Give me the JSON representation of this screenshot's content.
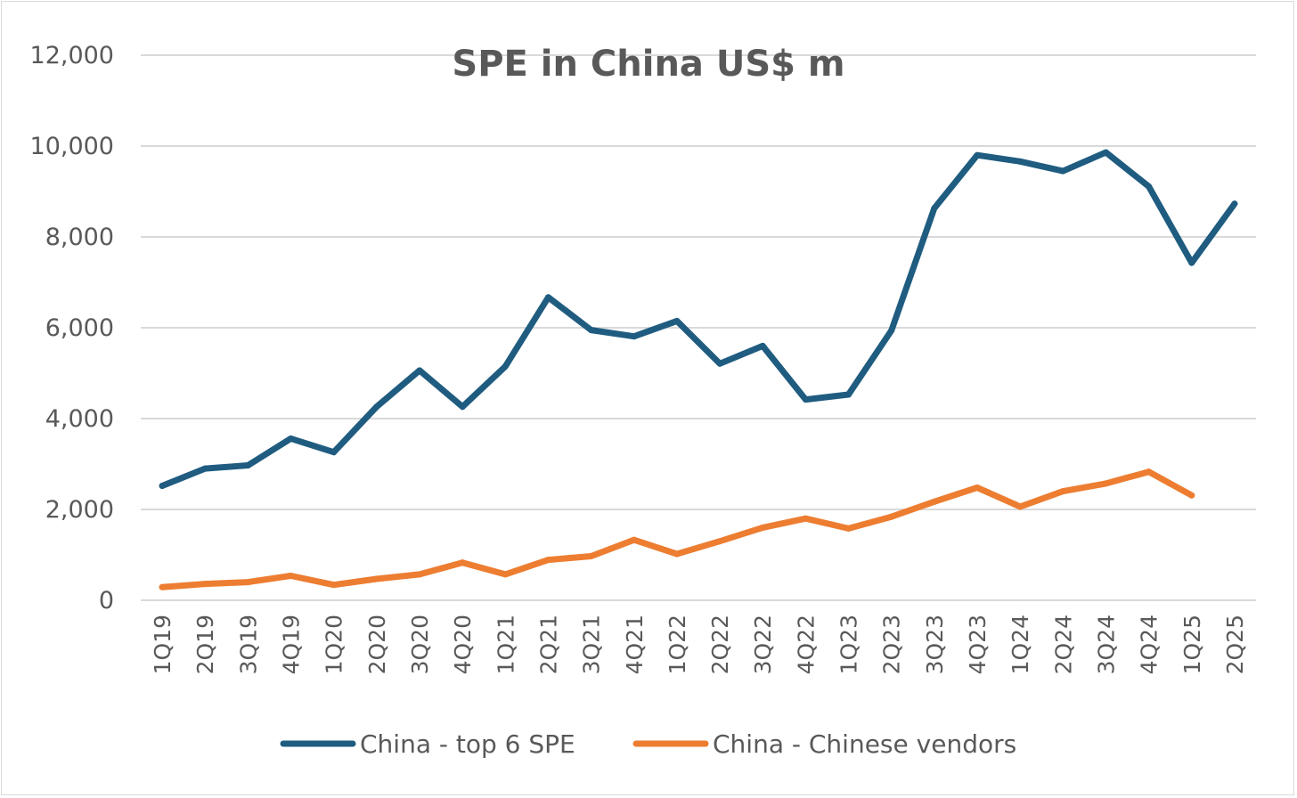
{
  "chart_data": {
    "type": "line",
    "title": "SPE in China US$ m",
    "xlabel": "",
    "ylabel": "",
    "ylim": [
      0,
      12000
    ],
    "yticks": [
      0,
      2000,
      4000,
      6000,
      8000,
      10000,
      12000
    ],
    "ytick_labels": [
      "0",
      "2,000",
      "4,000",
      "6,000",
      "8,000",
      "10,000",
      "12,000"
    ],
    "grid": true,
    "legend_position": "bottom",
    "categories": [
      "1Q19",
      "2Q19",
      "3Q19",
      "4Q19",
      "1Q20",
      "2Q20",
      "3Q20",
      "4Q20",
      "1Q21",
      "2Q21",
      "3Q21",
      "4Q21",
      "1Q22",
      "2Q22",
      "3Q22",
      "4Q22",
      "1Q23",
      "2Q23",
      "3Q23",
      "4Q23",
      "1Q24",
      "2Q24",
      "3Q24",
      "4Q24",
      "1Q25",
      "2Q25"
    ],
    "series": [
      {
        "name": "China - top 6 SPE",
        "color": "#1f5c80",
        "values": [
          2520,
          2900,
          2970,
          3560,
          3260,
          4260,
          5060,
          4260,
          5150,
          6670,
          5950,
          5810,
          6150,
          5210,
          5600,
          4420,
          4530,
          5940,
          8630,
          9800,
          9660,
          9450,
          9860,
          9110,
          7430,
          8730
        ]
      },
      {
        "name": "China - Chinese vendors",
        "color": "#ed7d31",
        "values": [
          290,
          360,
          400,
          540,
          340,
          470,
          570,
          830,
          570,
          890,
          970,
          1330,
          1020,
          1300,
          1600,
          1800,
          1580,
          1840,
          2170,
          2480,
          2060,
          2400,
          2570,
          2830,
          2310,
          null
        ]
      }
    ]
  }
}
